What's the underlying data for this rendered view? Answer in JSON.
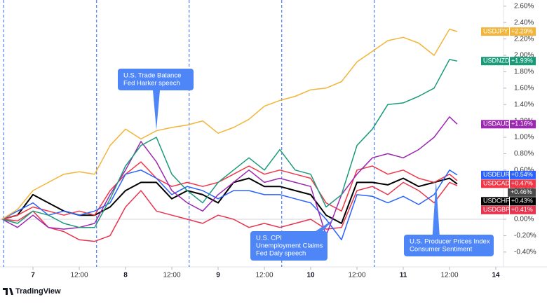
{
  "chart_data": {
    "type": "line",
    "x": [
      -8,
      -4,
      0,
      4,
      8,
      12,
      16,
      20,
      24,
      28,
      32,
      36,
      40,
      44,
      48,
      52,
      56,
      60,
      64,
      68,
      72,
      76,
      80,
      84,
      88,
      92,
      96,
      100,
      104,
      108,
      110
    ],
    "xlim": [
      -8,
      121
    ],
    "xticks": [
      {
        "value": 0,
        "label": "7"
      },
      {
        "value": 12,
        "label": "12:00"
      },
      {
        "value": 24,
        "label": "8"
      },
      {
        "value": 36,
        "label": "12:00"
      },
      {
        "value": 48,
        "label": "9"
      },
      {
        "value": 60,
        "label": "12:00"
      },
      {
        "value": 72,
        "label": "10"
      },
      {
        "value": 84,
        "label": "12:00"
      },
      {
        "value": 96,
        "label": "11"
      },
      {
        "value": 108,
        "label": "12:00"
      },
      {
        "value": 120,
        "label": "14"
      }
    ],
    "ylim": [
      -0.58,
      2.63
    ],
    "yticks": [
      {
        "value": 2.6,
        "label": "2.60%"
      },
      {
        "value": 2.4,
        "label": "2.40%"
      },
      {
        "value": 2.2,
        "label": "2.20%"
      },
      {
        "value": 2.0,
        "label": "2.00%"
      },
      {
        "value": 1.8,
        "label": "1.80%"
      },
      {
        "value": 1.6,
        "label": "1.60%"
      },
      {
        "value": 1.4,
        "label": "1.40%"
      },
      {
        "value": 1.2,
        "label": "1.20%"
      },
      {
        "value": 1.0,
        "label": "1.00%"
      },
      {
        "value": 0.8,
        "label": "0.80%"
      },
      {
        "value": 0.6,
        "label": "0.60%"
      },
      {
        "value": 0.4,
        "label": "0.40%"
      },
      {
        "value": 0.2,
        "label": "0.20%"
      },
      {
        "value": 0.0,
        "label": "0.00%"
      },
      {
        "value": -0.2,
        "label": "-0.20%"
      },
      {
        "value": -0.4,
        "label": "-0.40%"
      }
    ],
    "zero_line": true,
    "session_breaks": [
      -7.6,
      16.5,
      40.5,
      64.5,
      88.5
    ],
    "series": [
      {
        "name": "USDJPY",
        "color": "#f2b53a",
        "end_label": "+2.29%",
        "values": [
          0,
          0.12,
          0.35,
          0.45,
          0.55,
          0.58,
          0.55,
          0.9,
          1.1,
          0.98,
          1.08,
          1.12,
          1.15,
          1.2,
          1.05,
          1.12,
          1.22,
          1.38,
          1.45,
          1.5,
          1.58,
          1.6,
          1.68,
          1.92,
          2.05,
          2.18,
          2.22,
          2.15,
          2.0,
          2.32,
          2.29
        ]
      },
      {
        "name": "USDNZD",
        "color": "#1b9a7a",
        "end_label": "+1.93%",
        "values": [
          0,
          -0.05,
          0.1,
          0.05,
          -0.05,
          -0.1,
          -0.1,
          0.25,
          0.65,
          0.9,
          1.0,
          0.55,
          0.35,
          0.2,
          0.45,
          0.6,
          0.75,
          0.6,
          0.85,
          0.6,
          0.55,
          0.15,
          0.3,
          0.9,
          1.1,
          1.4,
          1.42,
          1.5,
          1.6,
          1.95,
          1.93
        ]
      },
      {
        "name": "USDAUD",
        "color": "#9c27b0",
        "end_label": "+1.16%",
        "values": [
          0,
          -0.1,
          0.05,
          -0.1,
          -0.12,
          -0.1,
          -0.05,
          0.3,
          0.6,
          0.95,
          0.7,
          0.35,
          0.2,
          0.1,
          0.3,
          0.45,
          0.6,
          0.45,
          0.5,
          0.45,
          0.4,
          -0.2,
          0.3,
          0.55,
          0.75,
          0.8,
          0.75,
          0.85,
          1.0,
          1.25,
          1.16
        ]
      },
      {
        "name": "USDEUR",
        "color": "#2962ff",
        "end_label": "+0.54%",
        "values": [
          0,
          0.1,
          0.2,
          0.05,
          0.1,
          0.05,
          0.1,
          0.2,
          0.55,
          0.6,
          0.5,
          0.3,
          0.4,
          0.35,
          0.25,
          0.35,
          0.35,
          0.3,
          0.3,
          0.25,
          0.2,
          0.0,
          -0.25,
          0.3,
          0.28,
          0.2,
          0.28,
          0.18,
          0.3,
          0.6,
          0.54
        ]
      },
      {
        "name": "USDCAD",
        "color": "#f23645",
        "end_label": "+0.47%",
        "values": [
          0,
          0.05,
          0.15,
          0.1,
          0.05,
          0.1,
          0.05,
          0.35,
          0.55,
          0.7,
          0.5,
          0.4,
          0.45,
          0.4,
          0.45,
          0.55,
          0.65,
          0.55,
          0.6,
          0.55,
          0.5,
          0.2,
          0.1,
          0.6,
          0.65,
          0.55,
          0.6,
          0.5,
          0.45,
          0.55,
          0.47
        ]
      },
      {
        "name": "USDCHF",
        "color": "#000000",
        "end_label": "+0.43%",
        "values": [
          0,
          0.05,
          0.3,
          0.2,
          0.1,
          0.05,
          0.05,
          0.15,
          0.35,
          0.45,
          0.45,
          0.25,
          0.35,
          0.3,
          0.2,
          0.45,
          0.5,
          0.4,
          0.4,
          0.35,
          0.3,
          0.05,
          -0.05,
          0.45,
          0.45,
          0.42,
          0.5,
          0.4,
          0.45,
          0.5,
          0.43
        ]
      },
      {
        "name": "USDGBP",
        "color": "#e8344e",
        "end_label": "+0.41%",
        "values": [
          0,
          -0.02,
          0.1,
          -0.1,
          -0.15,
          -0.25,
          -0.27,
          -0.2,
          0.15,
          0.35,
          0.1,
          0.05,
          0.0,
          -0.05,
          0.05,
          0.0,
          -0.1,
          -0.05,
          -0.1,
          -0.05,
          0.0,
          -0.12,
          -0.1,
          0.35,
          0.4,
          0.3,
          0.45,
          0.35,
          0.2,
          0.45,
          0.41
        ]
      }
    ],
    "extra_price_labels": [
      {
        "value": 0.46,
        "label": "+0.46%",
        "color": "#4a4a4a"
      }
    ],
    "annotations": [
      {
        "lines": [
          "U.S. Trade Balance",
          "Fed Harker speech"
        ],
        "x": 32,
        "y": 1.09
      },
      {
        "lines": [
          "U.S. CPI",
          "Unemployment Claims",
          "Fed Daly speech"
        ],
        "x": 78,
        "y": 0.0
      },
      {
        "lines": [
          "U.S. Producer Prices Index",
          "Consumer Sentiment"
        ],
        "x": 104.5,
        "y": 0.47
      }
    ],
    "logo": "TradingView"
  }
}
